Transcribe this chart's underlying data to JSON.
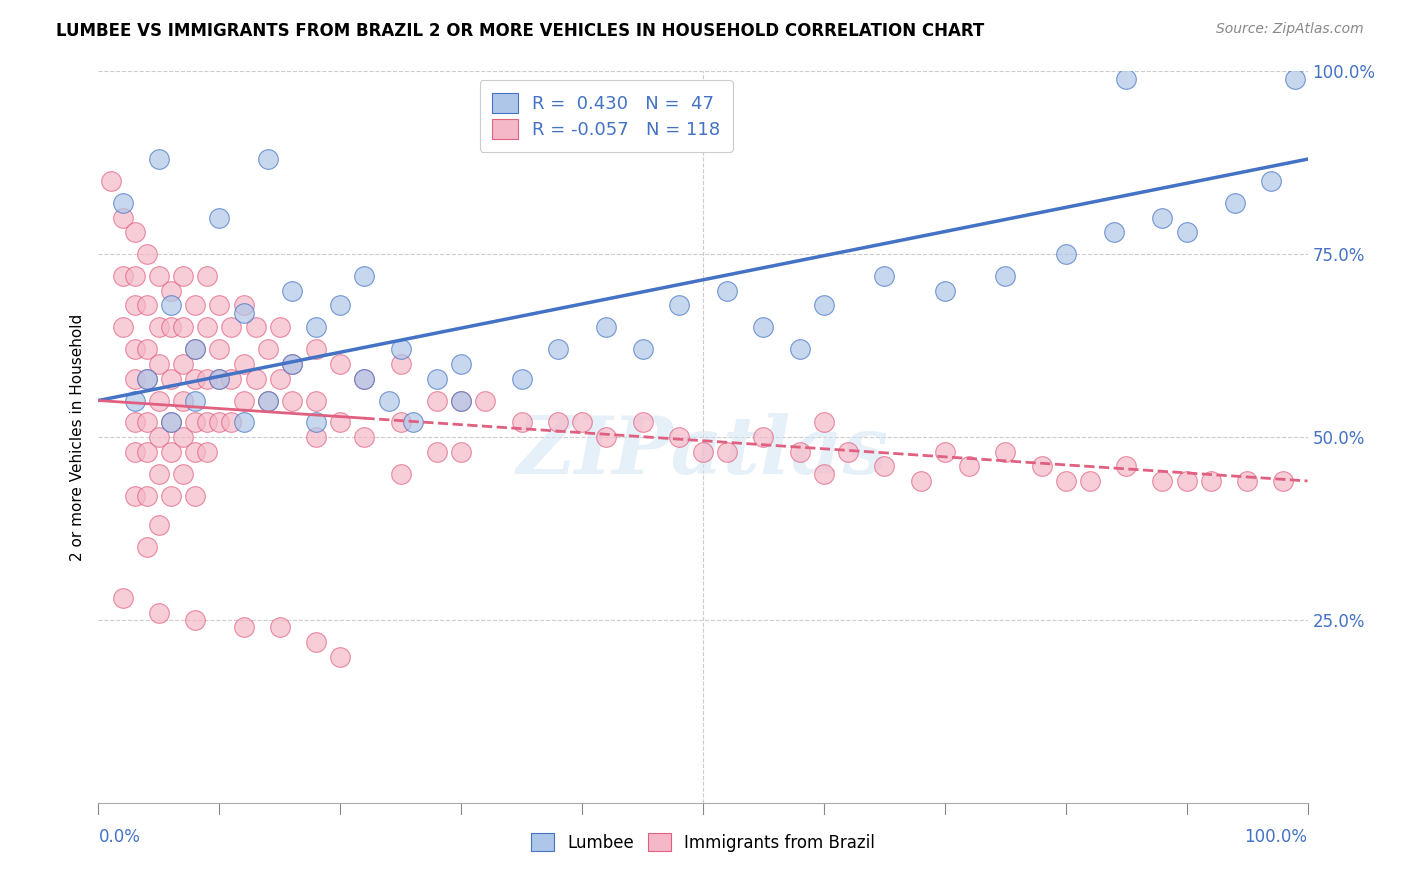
{
  "title": "LUMBEE VS IMMIGRANTS FROM BRAZIL 2 OR MORE VEHICLES IN HOUSEHOLD CORRELATION CHART",
  "source": "Source: ZipAtlas.com",
  "ylabel": "2 or more Vehicles in Household",
  "xmin": 0.0,
  "xmax": 1.0,
  "ymin": 0.0,
  "ymax": 1.0,
  "yticks": [
    0.25,
    0.5,
    0.75,
    1.0
  ],
  "ytick_labels": [
    "25.0%",
    "50.0%",
    "75.0%",
    "100.0%"
  ],
  "r_lumbee": 0.43,
  "n_lumbee": 47,
  "r_brazil": -0.057,
  "n_brazil": 118,
  "lumbee_color": "#aec6e8",
  "brazil_color": "#f5b8c8",
  "lumbee_line_color": "#4472c4",
  "brazil_line_color": "#e06080",
  "watermark": "ZIPatlas",
  "legend_r_color": "#4472c4",
  "lumbee_scatter": [
    [
      0.02,
      0.82
    ],
    [
      0.05,
      0.88
    ],
    [
      0.1,
      0.8
    ],
    [
      0.14,
      0.88
    ],
    [
      0.16,
      0.7
    ],
    [
      0.2,
      0.68
    ],
    [
      0.22,
      0.72
    ],
    [
      0.18,
      0.65
    ],
    [
      0.12,
      0.67
    ],
    [
      0.08,
      0.62
    ],
    [
      0.06,
      0.68
    ],
    [
      0.25,
      0.62
    ],
    [
      0.28,
      0.58
    ],
    [
      0.3,
      0.6
    ],
    [
      0.24,
      0.55
    ],
    [
      0.16,
      0.6
    ],
    [
      0.1,
      0.58
    ],
    [
      0.04,
      0.58
    ],
    [
      0.03,
      0.55
    ],
    [
      0.06,
      0.52
    ],
    [
      0.08,
      0.55
    ],
    [
      0.12,
      0.52
    ],
    [
      0.14,
      0.55
    ],
    [
      0.18,
      0.52
    ],
    [
      0.22,
      0.58
    ],
    [
      0.26,
      0.52
    ],
    [
      0.3,
      0.55
    ],
    [
      0.35,
      0.58
    ],
    [
      0.38,
      0.62
    ],
    [
      0.42,
      0.65
    ],
    [
      0.45,
      0.62
    ],
    [
      0.48,
      0.68
    ],
    [
      0.52,
      0.7
    ],
    [
      0.55,
      0.65
    ],
    [
      0.58,
      0.62
    ],
    [
      0.6,
      0.68
    ],
    [
      0.65,
      0.72
    ],
    [
      0.7,
      0.7
    ],
    [
      0.75,
      0.72
    ],
    [
      0.8,
      0.75
    ],
    [
      0.84,
      0.78
    ],
    [
      0.88,
      0.8
    ],
    [
      0.9,
      0.78
    ],
    [
      0.94,
      0.82
    ],
    [
      0.97,
      0.85
    ],
    [
      0.85,
      0.99
    ],
    [
      0.99,
      0.99
    ]
  ],
  "brazil_scatter": [
    [
      0.01,
      0.85
    ],
    [
      0.02,
      0.8
    ],
    [
      0.02,
      0.72
    ],
    [
      0.02,
      0.65
    ],
    [
      0.03,
      0.78
    ],
    [
      0.03,
      0.72
    ],
    [
      0.03,
      0.68
    ],
    [
      0.03,
      0.62
    ],
    [
      0.03,
      0.58
    ],
    [
      0.03,
      0.52
    ],
    [
      0.03,
      0.48
    ],
    [
      0.03,
      0.42
    ],
    [
      0.04,
      0.75
    ],
    [
      0.04,
      0.68
    ],
    [
      0.04,
      0.62
    ],
    [
      0.04,
      0.58
    ],
    [
      0.04,
      0.52
    ],
    [
      0.04,
      0.48
    ],
    [
      0.04,
      0.42
    ],
    [
      0.04,
      0.35
    ],
    [
      0.05,
      0.72
    ],
    [
      0.05,
      0.65
    ],
    [
      0.05,
      0.6
    ],
    [
      0.05,
      0.55
    ],
    [
      0.05,
      0.5
    ],
    [
      0.05,
      0.45
    ],
    [
      0.05,
      0.38
    ],
    [
      0.06,
      0.7
    ],
    [
      0.06,
      0.65
    ],
    [
      0.06,
      0.58
    ],
    [
      0.06,
      0.52
    ],
    [
      0.06,
      0.48
    ],
    [
      0.06,
      0.42
    ],
    [
      0.07,
      0.72
    ],
    [
      0.07,
      0.65
    ],
    [
      0.07,
      0.6
    ],
    [
      0.07,
      0.55
    ],
    [
      0.07,
      0.5
    ],
    [
      0.07,
      0.45
    ],
    [
      0.08,
      0.68
    ],
    [
      0.08,
      0.62
    ],
    [
      0.08,
      0.58
    ],
    [
      0.08,
      0.52
    ],
    [
      0.08,
      0.48
    ],
    [
      0.08,
      0.42
    ],
    [
      0.09,
      0.72
    ],
    [
      0.09,
      0.65
    ],
    [
      0.09,
      0.58
    ],
    [
      0.09,
      0.52
    ],
    [
      0.09,
      0.48
    ],
    [
      0.1,
      0.68
    ],
    [
      0.1,
      0.62
    ],
    [
      0.1,
      0.58
    ],
    [
      0.1,
      0.52
    ],
    [
      0.11,
      0.65
    ],
    [
      0.11,
      0.58
    ],
    [
      0.11,
      0.52
    ],
    [
      0.12,
      0.68
    ],
    [
      0.12,
      0.6
    ],
    [
      0.12,
      0.55
    ],
    [
      0.13,
      0.65
    ],
    [
      0.13,
      0.58
    ],
    [
      0.14,
      0.62
    ],
    [
      0.14,
      0.55
    ],
    [
      0.15,
      0.65
    ],
    [
      0.15,
      0.58
    ],
    [
      0.16,
      0.6
    ],
    [
      0.16,
      0.55
    ],
    [
      0.18,
      0.62
    ],
    [
      0.18,
      0.55
    ],
    [
      0.18,
      0.5
    ],
    [
      0.2,
      0.6
    ],
    [
      0.2,
      0.52
    ],
    [
      0.22,
      0.58
    ],
    [
      0.22,
      0.5
    ],
    [
      0.25,
      0.6
    ],
    [
      0.25,
      0.52
    ],
    [
      0.25,
      0.45
    ],
    [
      0.28,
      0.55
    ],
    [
      0.28,
      0.48
    ],
    [
      0.3,
      0.55
    ],
    [
      0.3,
      0.48
    ],
    [
      0.32,
      0.55
    ],
    [
      0.35,
      0.52
    ],
    [
      0.38,
      0.52
    ],
    [
      0.4,
      0.52
    ],
    [
      0.42,
      0.5
    ],
    [
      0.45,
      0.52
    ],
    [
      0.48,
      0.5
    ],
    [
      0.5,
      0.48
    ],
    [
      0.52,
      0.48
    ],
    [
      0.55,
      0.5
    ],
    [
      0.58,
      0.48
    ],
    [
      0.6,
      0.45
    ],
    [
      0.6,
      0.52
    ],
    [
      0.62,
      0.48
    ],
    [
      0.65,
      0.46
    ],
    [
      0.68,
      0.44
    ],
    [
      0.7,
      0.48
    ],
    [
      0.72,
      0.46
    ],
    [
      0.75,
      0.48
    ],
    [
      0.78,
      0.46
    ],
    [
      0.8,
      0.44
    ],
    [
      0.82,
      0.44
    ],
    [
      0.85,
      0.46
    ],
    [
      0.88,
      0.44
    ],
    [
      0.9,
      0.44
    ],
    [
      0.92,
      0.44
    ],
    [
      0.95,
      0.44
    ],
    [
      0.98,
      0.44
    ],
    [
      0.02,
      0.28
    ],
    [
      0.05,
      0.26
    ],
    [
      0.08,
      0.25
    ],
    [
      0.12,
      0.24
    ],
    [
      0.15,
      0.24
    ],
    [
      0.18,
      0.22
    ],
    [
      0.2,
      0.2
    ]
  ]
}
